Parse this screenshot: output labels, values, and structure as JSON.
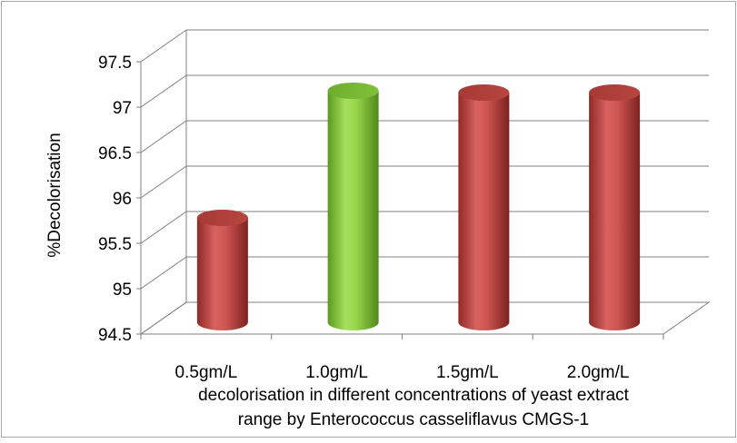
{
  "chart_data": {
    "type": "bar",
    "title": "",
    "categories": [
      "0.5gm/L",
      "1.0gm/L",
      "1.5gm/L",
      "2.0gm/L"
    ],
    "series": [
      {
        "values": [
          95.65,
          97.05,
          97.03,
          97.03
        ]
      }
    ],
    "bar_colors": [
      "#c0504d",
      "#92d050",
      "#c0504d",
      "#c0504d"
    ],
    "ylabel": "%Decolorisation",
    "xlabel_lines": [
      "decolorisation in different concentrations of yeast extract",
      "range by Enterococcus casseliflavus CMGS-1"
    ],
    "ylim": [
      94.5,
      97.5
    ],
    "yticks": [
      94.5,
      95,
      95.5,
      96,
      96.5,
      97,
      97.5
    ],
    "grid": true,
    "style": "3d-cylinder"
  }
}
